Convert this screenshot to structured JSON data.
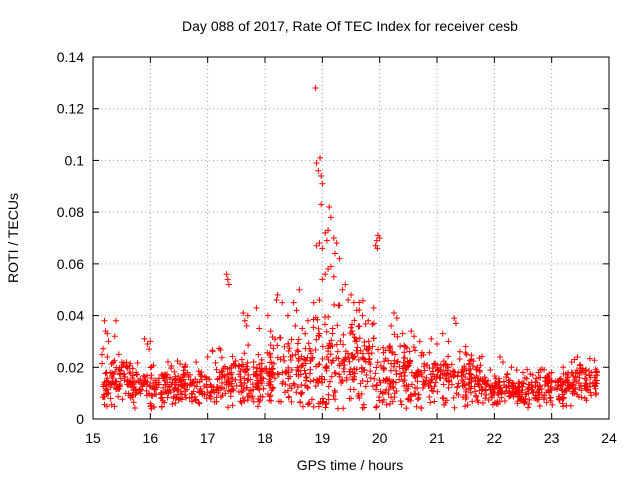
{
  "chart_data": {
    "type": "scatter",
    "title": "Day 088 of 2017, Rate Of TEC Index for receiver cesb",
    "xlabel": "GPS time / hours",
    "ylabel": "ROTI / TECUs",
    "xlim": [
      15,
      24
    ],
    "ylim": [
      0,
      0.14
    ],
    "xticks": [
      "15",
      "16",
      "17",
      "18",
      "19",
      "20",
      "21",
      "22",
      "23",
      "24"
    ],
    "yticks": [
      "0",
      "0.02",
      "0.04",
      "0.06",
      "0.08",
      "0.1",
      "0.12",
      "0.14"
    ],
    "grid": true,
    "marker": "+",
    "color": "#ff0000",
    "series": [
      {
        "name": "ROTI",
        "points": [
          [
            15.2,
            0.038
          ],
          [
            15.22,
            0.034
          ],
          [
            15.25,
            0.033
          ],
          [
            15.27,
            0.03
          ],
          [
            15.4,
            0.038
          ],
          [
            15.38,
            0.032
          ],
          [
            15.25,
            0.024
          ],
          [
            15.3,
            0.018
          ],
          [
            15.35,
            0.022
          ],
          [
            15.45,
            0.025
          ],
          [
            15.5,
            0.02
          ],
          [
            15.55,
            0.015
          ],
          [
            15.9,
            0.031
          ],
          [
            15.95,
            0.029
          ],
          [
            16.0,
            0.03
          ],
          [
            15.98,
            0.027
          ],
          [
            16.02,
            0.004
          ],
          [
            16.0,
            0.006
          ],
          [
            16.6,
            0.02
          ],
          [
            16.8,
            0.022
          ],
          [
            17.0,
            0.024
          ],
          [
            17.33,
            0.056
          ],
          [
            17.35,
            0.054
          ],
          [
            17.37,
            0.052
          ],
          [
            17.62,
            0.041
          ],
          [
            17.65,
            0.038
          ],
          [
            17.68,
            0.036
          ],
          [
            17.7,
            0.04
          ],
          [
            17.85,
            0.043
          ],
          [
            17.9,
            0.035
          ],
          [
            18.05,
            0.04
          ],
          [
            18.1,
            0.034
          ],
          [
            18.2,
            0.046
          ],
          [
            18.22,
            0.048
          ],
          [
            18.3,
            0.045
          ],
          [
            18.4,
            0.04
          ],
          [
            18.5,
            0.045
          ],
          [
            18.55,
            0.042
          ],
          [
            18.6,
            0.05
          ],
          [
            18.65,
            0.035
          ],
          [
            18.7,
            0.033
          ],
          [
            18.75,
            0.038
          ],
          [
            18.88,
            0.128
          ],
          [
            18.9,
            0.099
          ],
          [
            18.93,
            0.096
          ],
          [
            18.96,
            0.101
          ],
          [
            18.98,
            0.094
          ],
          [
            19.0,
            0.091
          ],
          [
            18.98,
            0.083
          ],
          [
            19.12,
            0.082
          ],
          [
            19.15,
            0.078
          ],
          [
            19.1,
            0.073
          ],
          [
            19.05,
            0.072
          ],
          [
            19.08,
            0.069
          ],
          [
            18.95,
            0.068
          ],
          [
            18.9,
            0.067
          ],
          [
            19.0,
            0.066
          ],
          [
            19.2,
            0.07
          ],
          [
            19.25,
            0.068
          ],
          [
            19.22,
            0.064
          ],
          [
            19.3,
            0.062
          ],
          [
            19.1,
            0.058
          ],
          [
            19.05,
            0.056
          ],
          [
            19.15,
            0.059
          ],
          [
            19.0,
            0.054
          ],
          [
            19.2,
            0.055
          ],
          [
            19.35,
            0.05
          ],
          [
            19.4,
            0.052
          ],
          [
            19.5,
            0.048
          ],
          [
            19.55,
            0.045
          ],
          [
            19.45,
            0.046
          ],
          [
            19.6,
            0.042
          ],
          [
            18.95,
            0.046
          ],
          [
            18.85,
            0.045
          ],
          [
            19.3,
            0.044
          ],
          [
            19.7,
            0.04
          ],
          [
            19.8,
            0.038
          ],
          [
            19.9,
            0.037
          ],
          [
            19.95,
            0.069
          ],
          [
            19.97,
            0.071
          ],
          [
            19.93,
            0.067
          ],
          [
            20.0,
            0.07
          ],
          [
            19.96,
            0.066
          ],
          [
            20.25,
            0.041
          ],
          [
            20.3,
            0.039
          ],
          [
            20.2,
            0.036
          ],
          [
            20.4,
            0.033
          ],
          [
            20.55,
            0.034
          ],
          [
            20.6,
            0.032
          ],
          [
            20.7,
            0.03
          ],
          [
            20.9,
            0.031
          ],
          [
            21.0,
            0.029
          ],
          [
            21.1,
            0.033
          ],
          [
            21.2,
            0.03
          ],
          [
            21.3,
            0.039
          ],
          [
            21.33,
            0.037
          ],
          [
            21.4,
            0.026
          ],
          [
            21.5,
            0.028
          ],
          [
            21.6,
            0.023
          ],
          [
            21.7,
            0.02
          ],
          [
            22.1,
            0.024
          ],
          [
            22.15,
            0.022
          ],
          [
            22.3,
            0.02
          ],
          [
            22.5,
            0.018
          ],
          [
            22.8,
            0.019
          ],
          [
            23.0,
            0.018
          ],
          [
            23.2,
            0.02
          ],
          [
            23.35,
            0.022
          ],
          [
            23.4,
            0.023
          ],
          [
            23.45,
            0.024
          ],
          [
            23.5,
            0.021
          ],
          [
            23.6,
            0.019
          ],
          [
            23.7,
            0.018
          ],
          [
            23.75,
            0.016
          ],
          [
            23.72,
            0.014
          ]
        ]
      }
    ]
  }
}
